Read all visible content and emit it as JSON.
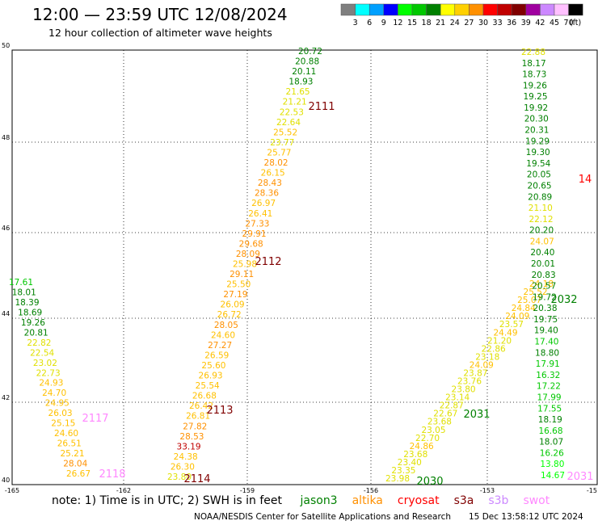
{
  "header": {
    "title": "12:00 — 23:59 UTC 12/08/2024",
    "subtitle": "12 hour collection of altimeter wave heights"
  },
  "legend": {
    "unit": "(ft)",
    "bins": [
      {
        "label": "3",
        "color": "#7f7f7f"
      },
      {
        "label": "6",
        "color": "#00ffff"
      },
      {
        "label": "9",
        "color": "#00a0ff"
      },
      {
        "label": "12",
        "color": "#0000ff"
      },
      {
        "label": "15",
        "color": "#00ff00"
      },
      {
        "label": "18",
        "color": "#00c800"
      },
      {
        "label": "21",
        "color": "#008000"
      },
      {
        "label": "24",
        "color": "#ffff00"
      },
      {
        "label": "27",
        "color": "#ffd000"
      },
      {
        "label": "30",
        "color": "#ff9000"
      },
      {
        "label": "33",
        "color": "#ff0000"
      },
      {
        "label": "36",
        "color": "#c00000"
      },
      {
        "label": "39",
        "color": "#800000"
      },
      {
        "label": "42",
        "color": "#a000a0"
      },
      {
        "label": "45",
        "color": "#cc88ff"
      },
      {
        "label": "70",
        "color": "#ffc0ff"
      },
      {
        "label": "",
        "color": "#000000"
      }
    ]
  },
  "map": {
    "lon_ticks": [
      "-165",
      "-162",
      "-159",
      "-156",
      "-153",
      "-15"
    ],
    "lat_ticks": [
      "50",
      "48",
      "46",
      "44",
      "42",
      "40"
    ],
    "pass_labels": [
      {
        "text": "2111",
        "color": "#800000"
      },
      {
        "text": "2112",
        "color": "#800000"
      },
      {
        "text": "2113",
        "color": "#800000"
      },
      {
        "text": "2114",
        "color": "#800000"
      },
      {
        "text": "2117",
        "color": "#ff88ff"
      },
      {
        "text": "2118",
        "color": "#ff88ff"
      },
      {
        "text": "2030",
        "color": "#008000"
      },
      {
        "text": "2031",
        "color": "#008000"
      },
      {
        "text": "2032",
        "color": "#008000"
      },
      {
        "text": "2031",
        "color": "#ff88ff"
      },
      {
        "text": "14",
        "color": "#ff0000"
      }
    ],
    "tracks": [
      {
        "name": "track-2111-2114",
        "values": [
          "20.72",
          "20.88",
          "20.11",
          "18.93",
          "21.65",
          "21.21",
          "22.53",
          "22.64",
          "25.52",
          "23.77",
          "25.77",
          "28.02",
          "26.15",
          "28.43",
          "28.36",
          "26.97",
          "26.41",
          "27.33",
          "29.91",
          "29.68",
          "28.09",
          "25.98",
          "29.11",
          "25.50",
          "27.19",
          "26.09",
          "26.72",
          "28.05",
          "24.60",
          "27.27",
          "26.59",
          "25.60",
          "26.93",
          "25.54",
          "26.68",
          "26.42",
          "26.81",
          "27.82",
          "28.53",
          "33.19",
          "24.38",
          "26.30",
          "23.80"
        ]
      },
      {
        "name": "track-2117-2118",
        "values": [
          "17.61",
          "18.01",
          "18.39",
          "18.69",
          "19.26",
          "20.81",
          "22.82",
          "22.54",
          "23.02",
          "22.73",
          "24.93",
          "24.70",
          "24.95",
          "26.03",
          "25.15",
          "24.60",
          "26.51",
          "25.21",
          "28.04",
          "26.67"
        ]
      },
      {
        "name": "track-2030-2032",
        "values": [
          "24.18",
          "25.52",
          "25.07",
          "24.84",
          "24.09",
          "23.57",
          "24.49",
          "21.20",
          "22.86",
          "23.18",
          "24.09",
          "23.87",
          "23.76",
          "23.80",
          "23.14",
          "22.87",
          "22.67",
          "23.68",
          "23.05",
          "22.70",
          "24.86",
          "23.68",
          "23.40",
          "23.35",
          "23.98"
        ]
      },
      {
        "name": "track-east",
        "values": [
          "22.88",
          "18.17",
          "18.73",
          "19.26",
          "19.25",
          "19.92",
          "20.30",
          "20.31",
          "19.29",
          "19.30",
          "19.54",
          "20.05",
          "20.65",
          "20.89",
          "21.10",
          "22.12",
          "20.20",
          "24.07",
          "20.40",
          "20.01",
          "20.83",
          "20.57",
          "19.72",
          "20.38",
          "19.75",
          "19.40",
          "17.40",
          "18.80",
          "17.91",
          "16.32",
          "17.22",
          "17.99",
          "17.55",
          "18.19",
          "16.68",
          "18.07",
          "16.26",
          "13.80",
          "14.67"
        ]
      }
    ]
  },
  "footer": {
    "note_prefix": "note: 1) Time is in UTC; 2) SWH is in feet",
    "satellites": [
      {
        "name": "jason3",
        "color": "#008000"
      },
      {
        "name": "altika",
        "color": "#ff9000"
      },
      {
        "name": "cryosat",
        "color": "#ff0000"
      },
      {
        "name": "s3a",
        "color": "#800000"
      },
      {
        "name": "s3b",
        "color": "#cc88ff"
      },
      {
        "name": "swot",
        "color": "#ff88ff"
      }
    ],
    "credit": "NOAA/NESDIS Center for Satellite Applications and Research",
    "timestamp": "15 Dec 13:58:12 UTC 2024"
  }
}
